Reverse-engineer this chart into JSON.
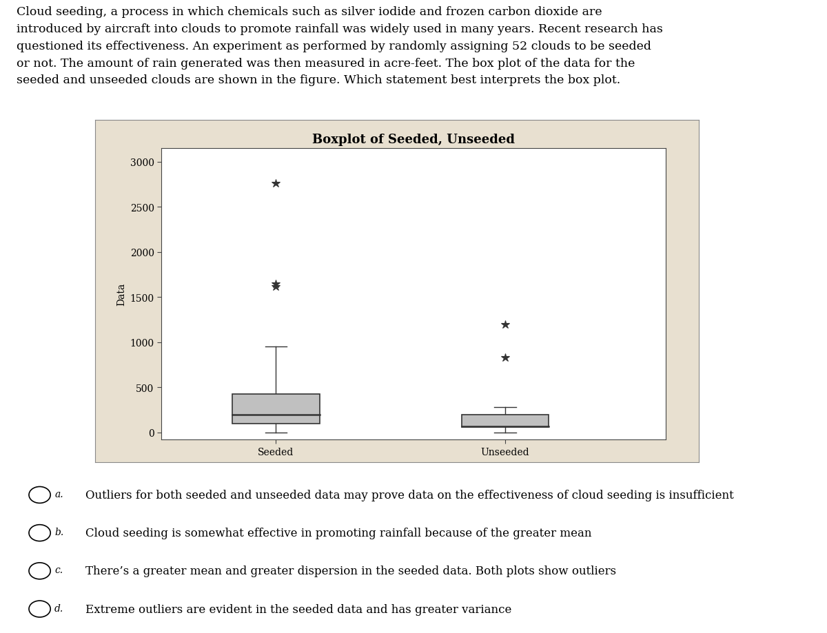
{
  "title": "Boxplot of Seeded, Unseeded",
  "ylabel": "Data",
  "xlabel_seeded": "Seeded",
  "xlabel_unseeded": "Unseeded",
  "seeded": {
    "q1": 100,
    "median": 200,
    "q3": 430,
    "whisker_low": 0,
    "whisker_high": 950,
    "outliers": [
      1620,
      1650,
      2760
    ]
  },
  "unseeded": {
    "q1": 60,
    "median": 65,
    "q3": 200,
    "whisker_low": 0,
    "whisker_high": 280,
    "outliers": [
      830,
      1200
    ]
  },
  "ylim": [
    -80,
    3150
  ],
  "yticks": [
    0,
    500,
    1000,
    1500,
    2000,
    2500,
    3000
  ],
  "box_color": "#c0c0c0",
  "box_edge_color": "#333333",
  "median_color": "#333333",
  "whisker_color": "#333333",
  "outlier_marker": "*",
  "outlier_color": "#333333",
  "outer_bg_color": "#e8e0d0",
  "plot_bg_color": "#ffffff",
  "page_bg_color": "#ffffff",
  "title_fontsize": 13,
  "label_fontsize": 10,
  "tick_fontsize": 10,
  "paragraph": "Cloud seeding, a process in which chemicals such as silver iodide and frozen carbon dioxide are\nintroduced by aircraft into clouds to promote rainfall was widely used in many years. Recent research has\nquestioned its effectiveness. An experiment as performed by randomly assigning 52 clouds to be seeded\nor not. The amount of rain generated was then measured in acre-feet. The box plot of the data for the\nseeded and unseeded clouds are shown in the figure. Which statement best interprets the box plot.",
  "choices": [
    "Outliers for both seeded and unseeded data may prove data on the effectiveness of cloud seeding is insufficient",
    "Cloud seeding is somewhat effective in promoting rainfall because of the greater mean",
    "There’s a greater mean and greater dispersion in the seeded data. Both plots show outliers",
    "Extreme outliers are evident in the seeded data and has greater variance"
  ],
  "choice_labels": [
    "a.",
    "b.",
    "c.",
    "d."
  ]
}
